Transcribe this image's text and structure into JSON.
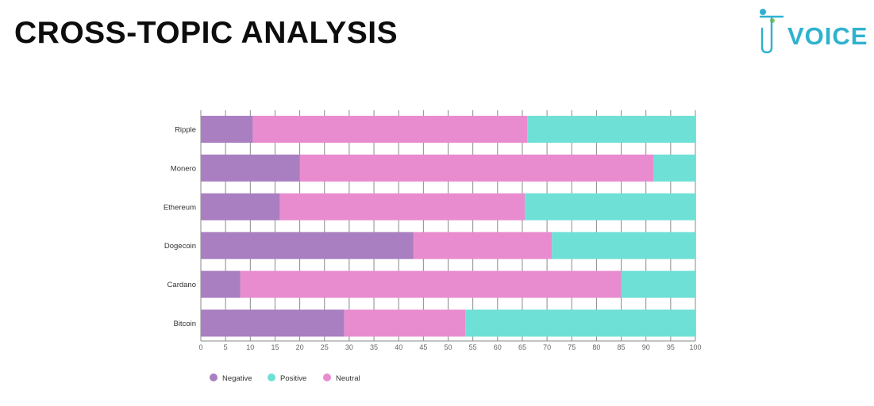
{
  "page": {
    "title": "CROSS-TOPIC ANALYSIS"
  },
  "logo": {
    "letter": "T",
    "text": "VOICE",
    "color": "#2fb2cf",
    "dot_color": "#8ec63f",
    "icon": "t-voice-logo-icon"
  },
  "chart_data": {
    "type": "bar",
    "orientation": "horizontal",
    "stacked": true,
    "categories": [
      "Ripple",
      "Monero",
      "Ethereum",
      "Dogecoin",
      "Cardano",
      "Bitcoin"
    ],
    "series": [
      {
        "name": "Negative",
        "color": "#a97fc1",
        "values": [
          10.5,
          20,
          16,
          43,
          8,
          29
        ]
      },
      {
        "name": "Neutral",
        "color": "#e98ccf",
        "values": [
          55.5,
          71.5,
          49.5,
          28,
          77,
          24.5
        ]
      },
      {
        "name": "Positive",
        "color": "#6ee0d6",
        "values": [
          34,
          8.5,
          34.5,
          29,
          15,
          46.5
        ]
      }
    ],
    "legend_order": [
      "Negative",
      "Positive",
      "Neutral"
    ],
    "xlim": [
      0,
      100
    ],
    "xticks": [
      0,
      5,
      10,
      15,
      20,
      25,
      30,
      35,
      40,
      45,
      50,
      55,
      60,
      65,
      70,
      75,
      80,
      85,
      90,
      95,
      100
    ],
    "grid": true,
    "legend_position": "bottom-left"
  }
}
